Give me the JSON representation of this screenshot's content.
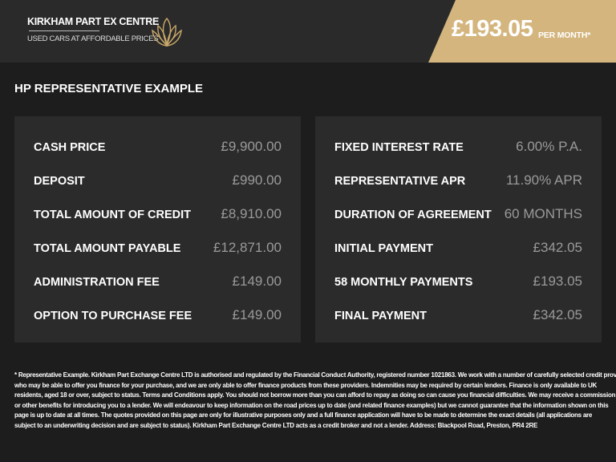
{
  "header": {
    "brand_name": "KIRKHAM PART EX CENTRE",
    "tagline": "USED CARS AT AFFORDABLE PRICES",
    "price": "£193.05",
    "price_suffix": "PER MONTH*",
    "accent_color": "#d4b57e"
  },
  "title": "HP REPRESENTATIVE EXAMPLE",
  "left_panel": [
    {
      "label": "CASH PRICE",
      "value": "£9,900.00"
    },
    {
      "label": "DEPOSIT",
      "value": "£990.00"
    },
    {
      "label": "TOTAL AMOUNT OF CREDIT",
      "value": "£8,910.00"
    },
    {
      "label": "TOTAL AMOUNT PAYABLE",
      "value": "£12,871.00"
    },
    {
      "label": "ADMINISTRATION FEE",
      "value": "£149.00"
    },
    {
      "label": "OPTION TO PURCHASE FEE",
      "value": "£149.00"
    }
  ],
  "right_panel": [
    {
      "label": "FIXED INTEREST RATE",
      "value": "6.00% P.A."
    },
    {
      "label": "REPRESENTATIVE APR",
      "value": "11.90% APR"
    },
    {
      "label": "DURATION OF AGREEMENT",
      "value": "60 MONTHS"
    },
    {
      "label": "INITIAL PAYMENT",
      "value": "£342.05"
    },
    {
      "label": "58 MONTHLY PAYMENTS",
      "value": "£193.05"
    },
    {
      "label": "FINAL PAYMENT",
      "value": "£342.05"
    }
  ],
  "footer_lines": [
    "* Representative Example. Kirkham Part Exchange Centre LTD is authorised and regulated by the Financial Conduct Authority, registered number 1021863. We work with a number of carefully selected credit providers",
    "who may be able to offer you finance for your purchase, and we are only able to offer finance products from these providers. Indemnities may be required by certain lenders. Finance is only available to UK",
    "residents, aged 18 or over, subject to status. Terms and Conditions apply. You should not borrow more than you can afford to repay as doing so can cause you financial difficulties. We may receive a commission",
    "or other benefits for introducing you to a lender. We will endeavour to keep information on the road prices up to date (and related finance examples) but we cannot guarantee that the information shown on this",
    "page is up to date at all times. The quotes provided on this page are only for illustrative purposes only and a full finance application will have to be made to determine the exact details (all applications are",
    "subject to an underwriting decision and are subject to status). Kirkham Part Exchange Centre LTD acts as a credit broker and not a lender. Address: Blackpool Road, Preston, PR4 2RE"
  ]
}
